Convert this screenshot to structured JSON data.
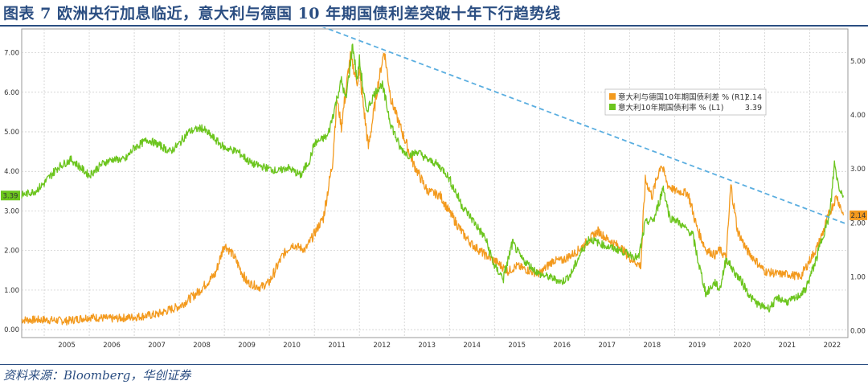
{
  "header": {
    "title": "图表 7 欧洲央行加息临近，意大利与德国 10 年期国债利差突破十年下行趋势线"
  },
  "footer": {
    "source": "资料来源：Bloomberg，华创证券"
  },
  "colors": {
    "spread": "#f39a1e",
    "yield": "#6cc51e",
    "trend": "#5aaee0",
    "title": "#2b4e82"
  },
  "chart_data": {
    "type": "line",
    "title": "图表 7 欧洲央行加息临近，意大利与德国 10 年期国债利差突破十年下行趋势线",
    "x_tick_labels": [
      "2005",
      "2006",
      "2007",
      "2008",
      "2009",
      "2010",
      "2011",
      "2012",
      "2013",
      "2014",
      "2015",
      "2016",
      "2017",
      "2018",
      "2019",
      "2020",
      "2021",
      "2022"
    ],
    "xlim": [
      2004.5,
      2022.85
    ],
    "left_axis": {
      "ylim": [
        -0.2,
        7.6
      ],
      "ticks": [
        "0.00",
        "1.00",
        "2.00",
        "3.00",
        "4.00",
        "5.00",
        "6.00",
        "7.00"
      ]
    },
    "right_axis": {
      "ylim": [
        -0.13,
        5.6
      ],
      "ticks": [
        "0.00",
        "1.00",
        "2.00",
        "3.00",
        "4.00",
        "5.00"
      ]
    },
    "grid": true,
    "legend_position": "top-right",
    "series": [
      {
        "name": "意大利与德国10年期国债利差 % (R1)",
        "last_value": "2.14",
        "axis": "right",
        "points": [
          [
            2004.5,
            0.2
          ],
          [
            2005.0,
            0.2
          ],
          [
            2005.5,
            0.18
          ],
          [
            2006.0,
            0.25
          ],
          [
            2006.5,
            0.22
          ],
          [
            2007.0,
            0.25
          ],
          [
            2007.5,
            0.3
          ],
          [
            2008.0,
            0.45
          ],
          [
            2008.4,
            0.7
          ],
          [
            2008.8,
            1.05
          ],
          [
            2009.0,
            1.6
          ],
          [
            2009.2,
            1.4
          ],
          [
            2009.5,
            0.9
          ],
          [
            2009.8,
            0.8
          ],
          [
            2010.0,
            0.9
          ],
          [
            2010.3,
            1.4
          ],
          [
            2010.5,
            1.6
          ],
          [
            2010.8,
            1.5
          ],
          [
            2011.0,
            1.8
          ],
          [
            2011.2,
            2.1
          ],
          [
            2011.4,
            3.1
          ],
          [
            2011.5,
            4.3
          ],
          [
            2011.6,
            3.8
          ],
          [
            2011.8,
            5.1
          ],
          [
            2011.95,
            4.6
          ],
          [
            2012.0,
            4.8
          ],
          [
            2012.2,
            3.4
          ],
          [
            2012.4,
            4.5
          ],
          [
            2012.55,
            5.2
          ],
          [
            2012.7,
            4.3
          ],
          [
            2012.9,
            3.8
          ],
          [
            2013.2,
            3.1
          ],
          [
            2013.5,
            2.6
          ],
          [
            2013.8,
            2.5
          ],
          [
            2014.0,
            2.2
          ],
          [
            2014.3,
            1.8
          ],
          [
            2014.5,
            1.6
          ],
          [
            2014.8,
            1.4
          ],
          [
            2015.0,
            1.3
          ],
          [
            2015.3,
            1.1
          ],
          [
            2015.5,
            1.2
          ],
          [
            2015.8,
            1.1
          ],
          [
            2016.0,
            1.05
          ],
          [
            2016.3,
            1.3
          ],
          [
            2016.5,
            1.3
          ],
          [
            2016.8,
            1.45
          ],
          [
            2017.0,
            1.6
          ],
          [
            2017.3,
            1.85
          ],
          [
            2017.5,
            1.7
          ],
          [
            2017.8,
            1.55
          ],
          [
            2018.0,
            1.35
          ],
          [
            2018.25,
            1.2
          ],
          [
            2018.35,
            2.8
          ],
          [
            2018.5,
            2.5
          ],
          [
            2018.7,
            3.1
          ],
          [
            2018.85,
            2.7
          ],
          [
            2019.0,
            2.6
          ],
          [
            2019.3,
            2.55
          ],
          [
            2019.5,
            1.9
          ],
          [
            2019.7,
            1.5
          ],
          [
            2019.9,
            1.4
          ],
          [
            2020.0,
            1.5
          ],
          [
            2020.15,
            1.35
          ],
          [
            2020.25,
            2.7
          ],
          [
            2020.4,
            1.85
          ],
          [
            2020.6,
            1.5
          ],
          [
            2020.8,
            1.3
          ],
          [
            2021.0,
            1.1
          ],
          [
            2021.3,
            1.05
          ],
          [
            2021.5,
            1.05
          ],
          [
            2021.8,
            1.0
          ],
          [
            2022.0,
            1.3
          ],
          [
            2022.2,
            1.6
          ],
          [
            2022.45,
            2.2
          ],
          [
            2022.6,
            2.5
          ],
          [
            2022.75,
            2.14
          ]
        ]
      },
      {
        "name": "意大利10年期国债利率 % (L1)",
        "last_value": "3.39",
        "axis": "left",
        "points": [
          [
            2004.5,
            3.4
          ],
          [
            2004.8,
            3.5
          ],
          [
            2005.0,
            3.7
          ],
          [
            2005.3,
            4.1
          ],
          [
            2005.6,
            4.3
          ],
          [
            2005.8,
            4.1
          ],
          [
            2006.0,
            3.9
          ],
          [
            2006.3,
            4.2
          ],
          [
            2006.5,
            4.3
          ],
          [
            2006.8,
            4.3
          ],
          [
            2007.0,
            4.6
          ],
          [
            2007.3,
            4.8
          ],
          [
            2007.5,
            4.7
          ],
          [
            2007.8,
            4.5
          ],
          [
            2008.0,
            4.7
          ],
          [
            2008.2,
            5.0
          ],
          [
            2008.5,
            5.1
          ],
          [
            2008.8,
            4.8
          ],
          [
            2009.0,
            4.6
          ],
          [
            2009.3,
            4.5
          ],
          [
            2009.6,
            4.2
          ],
          [
            2009.9,
            4.1
          ],
          [
            2010.2,
            4.0
          ],
          [
            2010.4,
            4.1
          ],
          [
            2010.7,
            3.9
          ],
          [
            2010.9,
            4.3
          ],
          [
            2011.0,
            4.7
          ],
          [
            2011.3,
            4.9
          ],
          [
            2011.45,
            5.6
          ],
          [
            2011.6,
            6.3
          ],
          [
            2011.7,
            5.8
          ],
          [
            2011.85,
            7.2
          ],
          [
            2011.95,
            6.3
          ],
          [
            2012.0,
            6.8
          ],
          [
            2012.15,
            5.5
          ],
          [
            2012.35,
            6.0
          ],
          [
            2012.5,
            6.2
          ],
          [
            2012.7,
            5.2
          ],
          [
            2012.9,
            4.6
          ],
          [
            2013.1,
            4.4
          ],
          [
            2013.3,
            4.5
          ],
          [
            2013.5,
            4.3
          ],
          [
            2013.7,
            4.2
          ],
          [
            2013.9,
            4.0
          ],
          [
            2014.0,
            3.8
          ],
          [
            2014.3,
            3.1
          ],
          [
            2014.5,
            2.8
          ],
          [
            2014.8,
            2.3
          ],
          [
            2015.0,
            1.6
          ],
          [
            2015.2,
            1.3
          ],
          [
            2015.4,
            2.2
          ],
          [
            2015.6,
            1.8
          ],
          [
            2015.8,
            1.6
          ],
          [
            2016.0,
            1.4
          ],
          [
            2016.3,
            1.3
          ],
          [
            2016.5,
            1.2
          ],
          [
            2016.7,
            1.4
          ],
          [
            2016.9,
            1.9
          ],
          [
            2017.1,
            2.3
          ],
          [
            2017.3,
            2.2
          ],
          [
            2017.5,
            2.1
          ],
          [
            2017.8,
            2.0
          ],
          [
            2018.0,
            1.9
          ],
          [
            2018.2,
            1.8
          ],
          [
            2018.35,
            2.7
          ],
          [
            2018.55,
            2.8
          ],
          [
            2018.75,
            3.6
          ],
          [
            2018.9,
            2.8
          ],
          [
            2019.0,
            2.8
          ],
          [
            2019.2,
            2.6
          ],
          [
            2019.4,
            2.4
          ],
          [
            2019.55,
            1.6
          ],
          [
            2019.7,
            0.9
          ],
          [
            2019.9,
            1.2
          ],
          [
            2020.0,
            1.0
          ],
          [
            2020.15,
            1.8
          ],
          [
            2020.3,
            1.5
          ],
          [
            2020.5,
            1.2
          ],
          [
            2020.7,
            0.8
          ],
          [
            2020.9,
            0.6
          ],
          [
            2021.1,
            0.55
          ],
          [
            2021.3,
            0.8
          ],
          [
            2021.5,
            0.7
          ],
          [
            2021.7,
            0.8
          ],
          [
            2021.9,
            1.0
          ],
          [
            2022.0,
            1.3
          ],
          [
            2022.15,
            1.8
          ],
          [
            2022.3,
            2.4
          ],
          [
            2022.45,
            2.9
          ],
          [
            2022.55,
            4.2
          ],
          [
            2022.65,
            3.6
          ],
          [
            2022.75,
            3.39
          ]
        ]
      }
    ],
    "trend_line": [
      [
        2011.15,
        5.65
      ],
      [
        2022.85,
        1.97
      ]
    ]
  }
}
